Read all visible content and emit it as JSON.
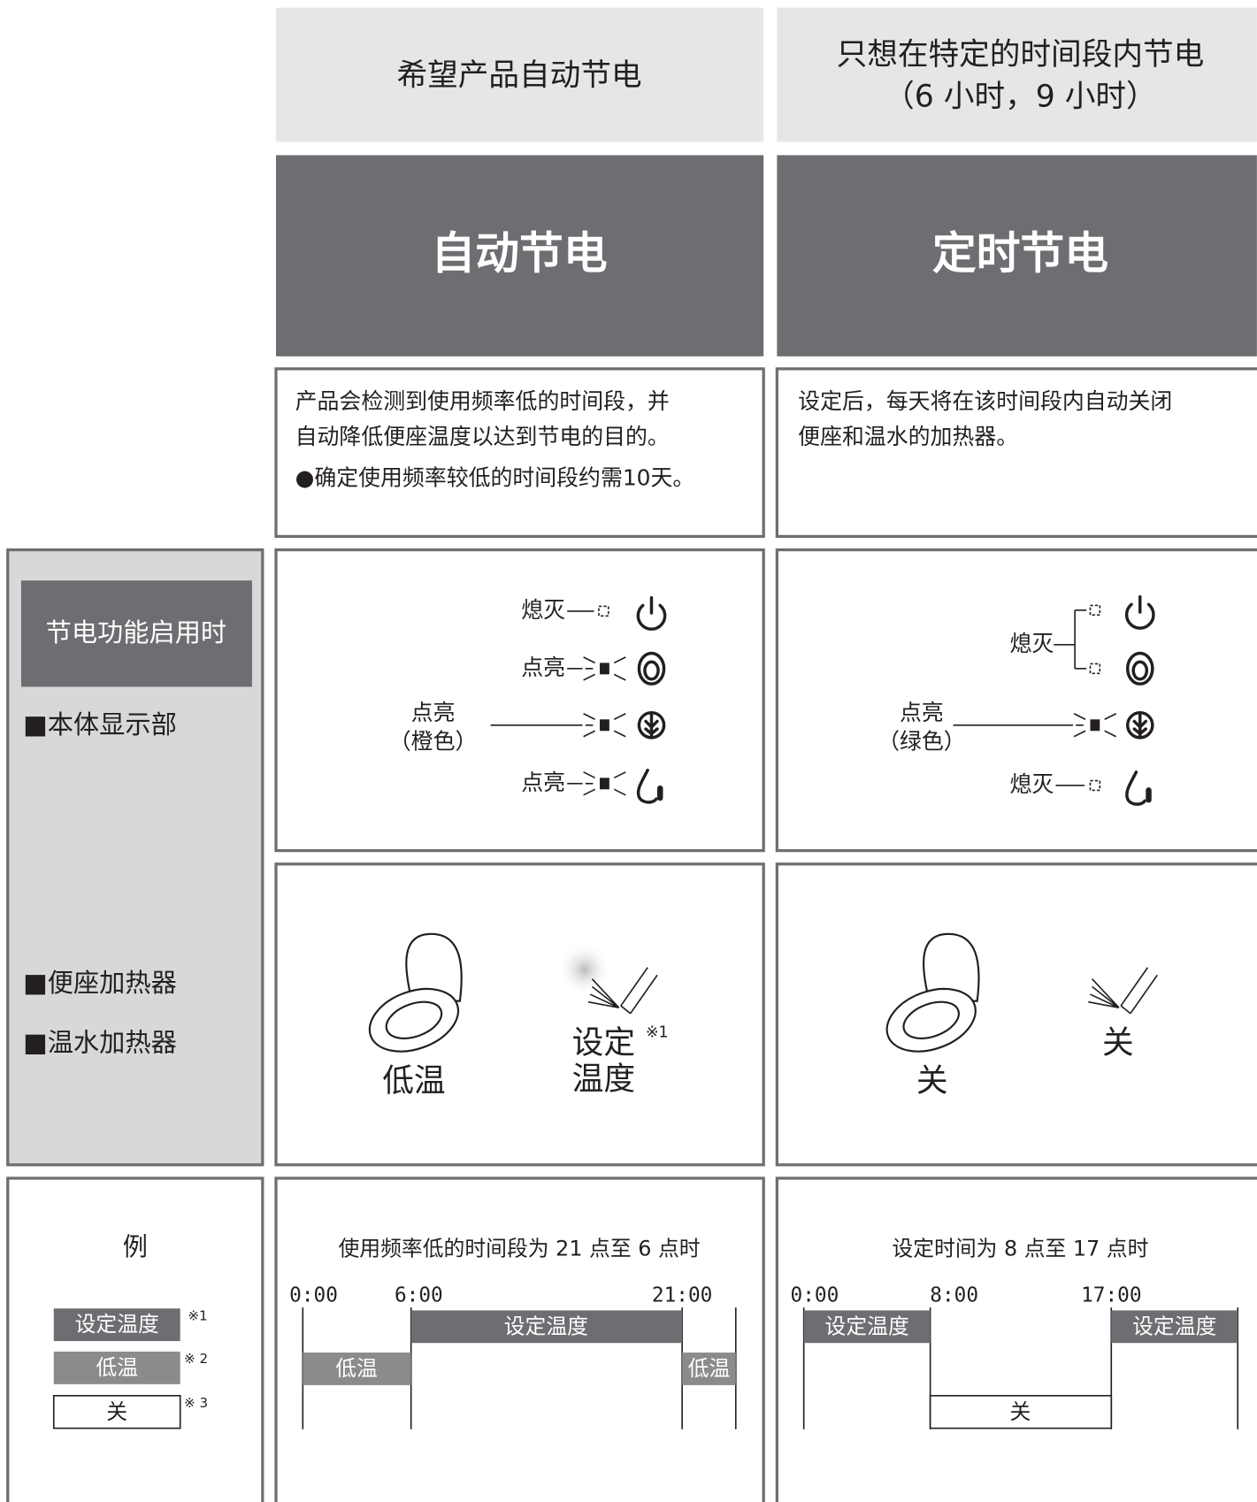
{
  "columns": [
    {
      "header": [
        "希望产品自动节电"
      ],
      "title": "自动节电",
      "description": [
        "产品会检测到使用频率低的时间段，并",
        "自动降低便座温度以达到节电的目的。"
      ],
      "note": "●确定使用频率较低的时间段约需10天。",
      "indicators": {
        "power": "熄灭",
        "seat": "点亮",
        "eco": [
          "点亮",
          "（橙色）"
        ],
        "water": "点亮"
      },
      "heaters": {
        "seat": "低温",
        "water": [
          "设定",
          "温度"
        ],
        "water_note": "※1"
      },
      "example": {
        "caption": "使用频率低的时间段为 21 点至 6 点时",
        "times": [
          "0:00",
          "6:00",
          "21:00"
        ],
        "bars": [
          "低温",
          "设定温度",
          "低温"
        ]
      }
    },
    {
      "header": [
        "只想在特定的时间段内节电",
        "（6 小时，9 小时）"
      ],
      "title": "定时节电",
      "description": [
        "设定后，每天将在该时间段内自动关闭",
        "便座和温水的加热器。"
      ],
      "indicators": {
        "off_top": "熄灭",
        "eco": [
          "点亮",
          "（绿色）"
        ],
        "water": "熄灭"
      },
      "heaters": {
        "seat": "关",
        "water": "关"
      },
      "example": {
        "caption": "设定时间为 8 点至 17 点时",
        "times": [
          "0:00",
          "8:00",
          "17:00"
        ],
        "bars": [
          "设定温度",
          "关",
          "设定温度"
        ]
      }
    }
  ],
  "side": {
    "active_label": "节电功能启用时",
    "display_label": "■本体显示部",
    "seat_heater": "■便座加热器",
    "water_heater": "■温水加热器",
    "example_title": "例",
    "legend": [
      {
        "label": "设定温度",
        "mark": "※1"
      },
      {
        "label": "低温",
        "mark": "※ 2"
      },
      {
        "label": "关",
        "mark": "※ 3"
      }
    ]
  }
}
